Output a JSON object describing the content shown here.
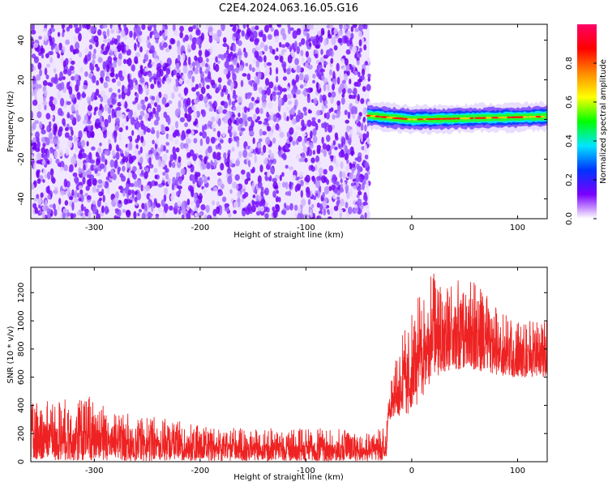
{
  "title": "C2E4.2024.063.16.05.G16",
  "chart_data": [
    {
      "type": "heatmap",
      "xlabel": "Height of straight line (km)",
      "ylabel": "Frequency (Hz)",
      "xlim": [
        -360,
        128
      ],
      "ylim": [
        -50,
        48
      ],
      "xticks": [
        -300,
        -200,
        -100,
        0,
        100
      ],
      "yticks": [
        -40,
        -20,
        0,
        20,
        40
      ],
      "noise_region": {
        "x_range": [
          -360,
          -40
        ],
        "y_range": [
          -50,
          48
        ]
      },
      "signal_band": {
        "x_range": [
          -42,
          128
        ],
        "center_hz": [
          2,
          0,
          0.5,
          1,
          1.5
        ]
      },
      "colorbar": {
        "label": "Normalized spectral amplitude",
        "range": [
          0.0,
          1.0
        ],
        "ticks": [
          0.0,
          0.2,
          0.4,
          0.6,
          0.8
        ],
        "colors": [
          "#ffffff",
          "#7a00ff",
          "#0033ff",
          "#00e5ff",
          "#00ff00",
          "#ffff00",
          "#ff8800",
          "#ff0000",
          "#ff0066"
        ]
      },
      "grid": false
    },
    {
      "type": "line",
      "xlabel": "Height of straight line (km)",
      "ylabel": "SNR (10 * v/v)",
      "xlim": [
        -360,
        128
      ],
      "ylim": [
        0,
        1380
      ],
      "xticks": [
        -300,
        -200,
        -100,
        0,
        100
      ],
      "yticks": [
        0,
        200,
        400,
        600,
        800,
        1000,
        1200
      ],
      "series_color": "#ee2222",
      "envelope": {
        "x": [
          -360,
          -330,
          -300,
          -280,
          -250,
          -200,
          -150,
          -100,
          -50,
          -24,
          -22,
          -10,
          0,
          10,
          20,
          40,
          60,
          80,
          100,
          128
        ],
        "y_low": [
          20,
          10,
          5,
          5,
          5,
          5,
          5,
          5,
          5,
          5,
          300,
          300,
          350,
          450,
          600,
          650,
          650,
          600,
          600,
          600
        ],
        "y_high": [
          420,
          450,
          480,
          350,
          330,
          260,
          240,
          240,
          230,
          240,
          520,
          900,
          1050,
          1250,
          1380,
          1300,
          1280,
          1100,
          1000,
          1000
        ]
      },
      "grid": false
    }
  ]
}
